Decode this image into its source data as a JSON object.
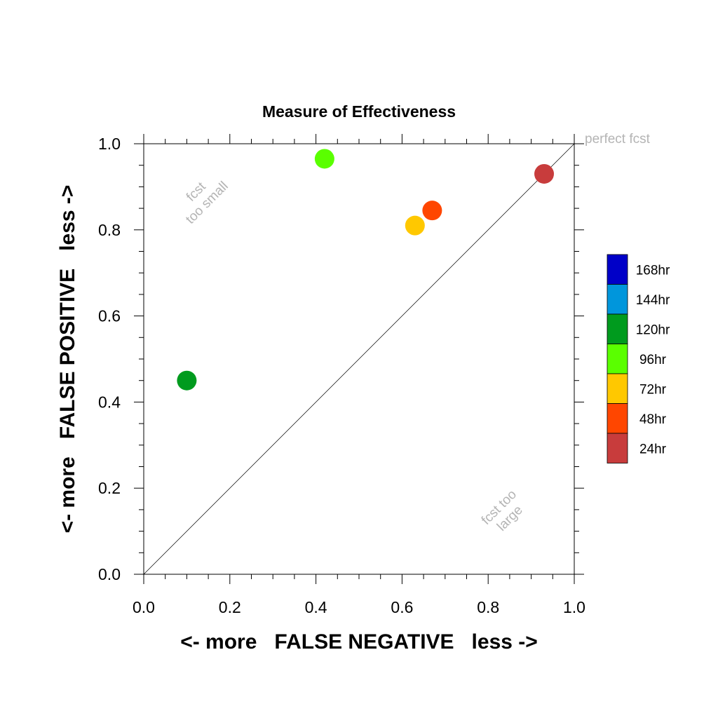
{
  "chart_data": {
    "type": "scatter",
    "title": "Measure of Effectiveness",
    "xlabel": "<- more   FALSE NEGATIVE   less ->",
    "ylabel": "<- more   FALSE POSITIVE   less ->",
    "xlim": [
      0,
      1
    ],
    "ylim": [
      0,
      1
    ],
    "xticks": [
      "0.0",
      "0.2",
      "0.4",
      "0.6",
      "0.8",
      "1.0"
    ],
    "yticks": [
      "0.0",
      "0.2",
      "0.4",
      "0.6",
      "0.8",
      "1.0"
    ],
    "grid": false,
    "diagonal": true,
    "annotations": {
      "perfect": "perfect fcst",
      "small_line1": "fcst",
      "small_line2": "too small",
      "large_line1": "fcst too",
      "large_line2": "large"
    },
    "legend_position": "right",
    "legend": [
      {
        "label": "168hr",
        "color": "#0000c8"
      },
      {
        "label": "144hr",
        "color": "#0096dc"
      },
      {
        "label": "120hr",
        "color": "#009b1e"
      },
      {
        "label": "96hr",
        "color": "#5aff00"
      },
      {
        "label": "72hr",
        "color": "#ffc800"
      },
      {
        "label": "48hr",
        "color": "#ff4600"
      },
      {
        "label": "24hr",
        "color": "#c83c3c"
      }
    ],
    "points": [
      {
        "series": "24hr",
        "x": 0.93,
        "y": 0.93
      },
      {
        "series": "48hr",
        "x": 0.67,
        "y": 0.845
      },
      {
        "series": "72hr",
        "x": 0.63,
        "y": 0.81
      },
      {
        "series": "96hr",
        "x": 0.42,
        "y": 0.965
      },
      {
        "series": "120hr",
        "x": 0.1,
        "y": 0.45
      }
    ]
  }
}
